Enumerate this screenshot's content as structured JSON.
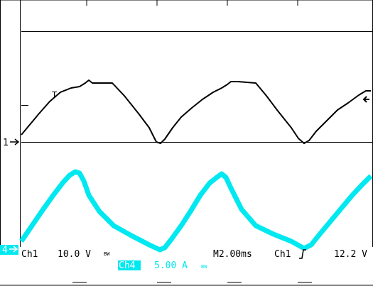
{
  "scope": {
    "background": "#ffffff",
    "grid_color": "#000000",
    "channels": [
      {
        "id": "Ch1",
        "marker": "1",
        "color": "#000000",
        "scale": "10.0 V",
        "bw_symbol": "BW"
      },
      {
        "id": "Ch4",
        "marker": "4",
        "color": "#00e8f0",
        "scale": "5.00 A",
        "bw_symbol": "BW"
      }
    ],
    "trigger": {
      "marker": "T",
      "level_arrow": "left-arrow-icon"
    },
    "status": {
      "ch1_label": "Ch1",
      "ch1_scale": "10.0 V",
      "ch4_label": "Ch4",
      "ch4_scale": "5.00 A",
      "bw1": "BW",
      "bw4": "BW",
      "timebase": "M2.00ms",
      "trigger_source": "Ch1",
      "trigger_slope_icon": "rising-edge-icon",
      "trigger_level": "12.2 V"
    }
  }
}
